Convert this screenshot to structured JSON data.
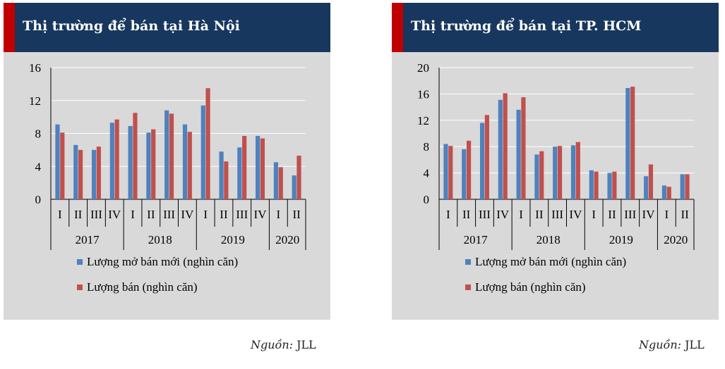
{
  "source": {
    "label": "Nguồn:",
    "value": "JLL"
  },
  "chart_data": [
    {
      "type": "bar",
      "title": "Thị trường để bán tại Hà Nội",
      "categories": [
        "I",
        "II",
        "III",
        "IV",
        "I",
        "II",
        "III",
        "IV",
        "I",
        "II",
        "III",
        "IV",
        "I",
        "II"
      ],
      "groups": [
        {
          "label": "2017",
          "count": 4
        },
        {
          "label": "2018",
          "count": 4
        },
        {
          "label": "2019",
          "count": 4
        },
        {
          "label": "2020",
          "count": 2
        }
      ],
      "series": [
        {
          "name": "Lượng mở bán mới (nghìn căn)",
          "color": "#4f81bd",
          "values": [
            9.1,
            6.6,
            6.0,
            9.3,
            8.9,
            8.1,
            10.8,
            9.1,
            11.4,
            5.8,
            6.3,
            7.7,
            4.5,
            2.9
          ]
        },
        {
          "name": "Lượng bán (nghìn căn)",
          "color": "#c0504d",
          "values": [
            8.1,
            6.0,
            6.4,
            9.7,
            10.5,
            8.5,
            10.4,
            8.2,
            13.5,
            4.6,
            7.7,
            7.4,
            3.9,
            5.3
          ]
        }
      ],
      "ylim": [
        0,
        16
      ],
      "yticks": [
        0,
        4,
        8,
        12,
        16
      ],
      "grid": true,
      "legend": "bottom"
    },
    {
      "type": "bar",
      "title": "Thị trường để bán tại TP. HCM",
      "categories": [
        "I",
        "II",
        "III",
        "IV",
        "I",
        "II",
        "III",
        "IV",
        "I",
        "II",
        "III",
        "IV",
        "I",
        "II"
      ],
      "groups": [
        {
          "label": "2017",
          "count": 4
        },
        {
          "label": "2018",
          "count": 4
        },
        {
          "label": "2019",
          "count": 4
        },
        {
          "label": "2020",
          "count": 2
        }
      ],
      "series": [
        {
          "name": "Lượng mở bán mới (nghìn căn)",
          "color": "#4f81bd",
          "values": [
            8.4,
            7.6,
            11.6,
            15.1,
            13.6,
            6.8,
            8.0,
            8.2,
            4.4,
            4.0,
            16.9,
            3.5,
            2.1,
            3.8
          ]
        },
        {
          "name": "Lượng bán (nghìn căn)",
          "color": "#c0504d",
          "values": [
            8.1,
            8.9,
            12.8,
            16.1,
            15.5,
            7.3,
            8.1,
            8.7,
            4.2,
            4.2,
            17.1,
            5.3,
            1.9,
            3.8
          ]
        }
      ],
      "ylim": [
        0,
        20
      ],
      "yticks": [
        0,
        4,
        8,
        12,
        16,
        20
      ],
      "grid": true,
      "legend": "bottom"
    }
  ]
}
